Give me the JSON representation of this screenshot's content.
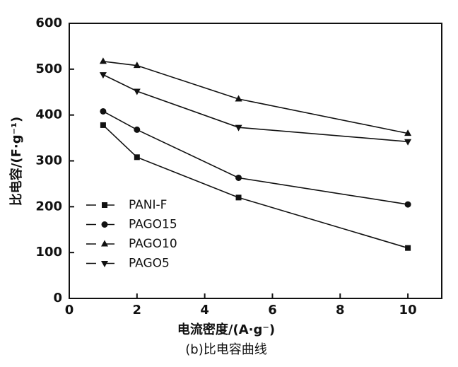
{
  "chart_data": {
    "type": "line",
    "x_label": "电流密度/(A·g⁻)",
    "y_label": "比电容/(F·g⁻¹)",
    "caption": "(b)比电容曲线",
    "x": [
      1,
      2,
      5,
      10
    ],
    "series": [
      {
        "name": "PANI-F",
        "color": "#111111",
        "marker": "square",
        "values": [
          378,
          308,
          220,
          110
        ]
      },
      {
        "name": "PAGO15",
        "color": "#111111",
        "marker": "circle",
        "values": [
          408,
          368,
          263,
          205
        ]
      },
      {
        "name": "PAGO10",
        "color": "#111111",
        "marker": "triangle-up",
        "values": [
          517,
          508,
          435,
          360
        ]
      },
      {
        "name": "PAGO5",
        "color": "#111111",
        "marker": "triangle-down",
        "values": [
          488,
          452,
          373,
          342
        ]
      }
    ],
    "xlim": [
      0,
      11
    ],
    "xticks": [
      0,
      2,
      4,
      6,
      8,
      10
    ],
    "ylim": [
      0,
      600
    ],
    "yticks": [
      0,
      100,
      200,
      300,
      400,
      500,
      600
    ],
    "legend": "lower left"
  }
}
